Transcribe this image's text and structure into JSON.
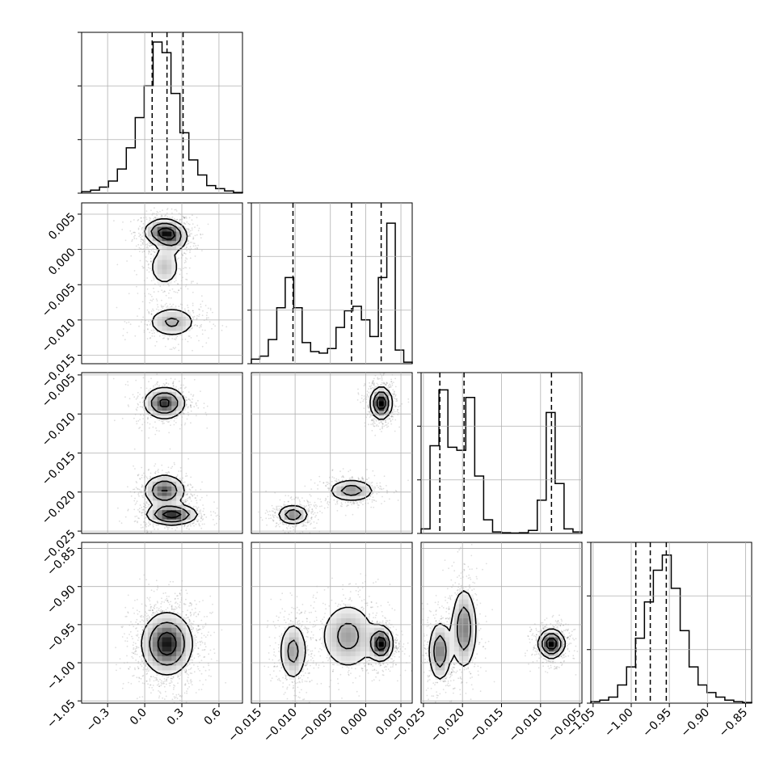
{
  "chart_data": {
    "type": "corner",
    "grid": true,
    "parameters": [
      {
        "ticks": [
          -0.3,
          0.0,
          0.3,
          0.6
        ],
        "tick_labels": [
          "−0.3",
          "0.0",
          "0.3",
          "0.6"
        ],
        "range": [
          -0.51,
          0.79
        ],
        "quantiles": [
          0.06,
          0.18,
          0.31
        ]
      },
      {
        "ticks": [
          -0.015,
          -0.01,
          -0.005,
          0.0,
          0.005
        ],
        "tick_labels": [
          "−0.015",
          "−0.010",
          "−0.005",
          "0.000",
          "0.005"
        ],
        "range": [
          -0.0162,
          0.0066
        ],
        "quantiles": [
          -0.0103,
          -0.002,
          0.0022
        ]
      },
      {
        "ticks": [
          -0.025,
          -0.02,
          -0.015,
          -0.01,
          -0.005
        ],
        "tick_labels": [
          "−0.025",
          "−0.020",
          "−0.015",
          "−0.010",
          "−0.005"
        ],
        "range": [
          -0.0253,
          -0.0047
        ],
        "quantiles": [
          -0.0229,
          -0.0198,
          -0.0086
        ]
      },
      {
        "ticks": [
          -1.05,
          -1.0,
          -0.95,
          -0.9,
          -0.85
        ],
        "tick_labels": [
          "−1.05",
          "−1.00",
          "−0.95",
          "−0.90",
          "−0.85"
        ],
        "range": [
          -1.053,
          -0.842
        ],
        "quantiles": [
          -0.994,
          -0.975,
          -0.954
        ]
      }
    ],
    "histograms": [
      [
        0.01,
        0.02,
        0.04,
        0.08,
        0.16,
        0.3,
        0.5,
        0.71,
        1.0,
        0.93,
        0.66,
        0.4,
        0.22,
        0.12,
        0.05,
        0.03,
        0.015,
        0.005
      ],
      [
        0.03,
        0.05,
        0.16,
        0.37,
        0.57,
        0.37,
        0.14,
        0.08,
        0.07,
        0.1,
        0.24,
        0.35,
        0.38,
        0.29,
        0.18,
        0.57,
        0.93,
        0.09,
        0.01
      ],
      [
        0.03,
        0.58,
        0.95,
        0.57,
        0.55,
        0.9,
        0.38,
        0.09,
        0.01,
        0.005,
        0.003,
        0.005,
        0.02,
        0.22,
        0.8,
        0.33,
        0.03,
        0.01
      ],
      [
        0.01,
        0.02,
        0.04,
        0.12,
        0.24,
        0.43,
        0.67,
        0.88,
        0.98,
        0.76,
        0.48,
        0.24,
        0.12,
        0.07,
        0.04,
        0.02,
        0.01,
        0.005
      ]
    ],
    "blobs": {
      "1-0": [
        {
          "x": 0.15,
          "y": 0.0025,
          "sx": 0.085,
          "sy": 0.001,
          "w": 1.0
        },
        {
          "x": 0.23,
          "y": 0.0015,
          "sx": 0.07,
          "sy": 0.0011,
          "w": 0.55
        },
        {
          "x": 0.16,
          "y": -0.0025,
          "sx": 0.075,
          "sy": 0.0016,
          "w": 0.5
        },
        {
          "x": 0.22,
          "y": -0.0103,
          "sx": 0.11,
          "sy": 0.0012,
          "w": 0.62
        }
      ],
      "2-0": [
        {
          "x": 0.16,
          "y": -0.0086,
          "sx": 0.09,
          "sy": 0.0011,
          "w": 0.55
        },
        {
          "x": 0.16,
          "y": -0.0198,
          "sx": 0.09,
          "sy": 0.0011,
          "w": 0.5
        },
        {
          "x": 0.22,
          "y": -0.0229,
          "sx": 0.11,
          "sy": 0.0007,
          "w": 0.6
        }
      ],
      "3-0": [
        {
          "x": 0.18,
          "y": -0.975,
          "sx": 0.11,
          "sy": 0.022,
          "w": 1.0
        }
      ],
      "2-1": [
        {
          "x": 0.0022,
          "y": -0.0086,
          "sx": 0.0008,
          "sy": 0.0011,
          "w": 0.8
        },
        {
          "x": -0.002,
          "y": -0.0198,
          "sx": 0.0018,
          "sy": 0.0008,
          "w": 0.45
        },
        {
          "x": -0.0103,
          "y": -0.0229,
          "sx": 0.0012,
          "sy": 0.0007,
          "w": 0.5
        }
      ],
      "3-1": [
        {
          "x": -0.0103,
          "y": -0.985,
          "sx": 0.0011,
          "sy": 0.022,
          "w": 0.45
        },
        {
          "x": -0.0025,
          "y": -0.965,
          "sx": 0.0022,
          "sy": 0.025,
          "w": 0.45
        },
        {
          "x": 0.0022,
          "y": -0.975,
          "sx": 0.0009,
          "sy": 0.012,
          "w": 0.8
        }
      ],
      "3-2": [
        {
          "x": -0.0229,
          "y": -0.985,
          "sx": 0.0008,
          "sy": 0.022,
          "w": 0.45
        },
        {
          "x": -0.0198,
          "y": -0.955,
          "sx": 0.0009,
          "sy": 0.03,
          "w": 0.45
        },
        {
          "x": -0.0086,
          "y": -0.975,
          "sx": 0.0009,
          "sy": 0.01,
          "w": 0.7
        }
      ]
    },
    "contour_levels": [
      0.8,
      0.45,
      0.18
    ]
  }
}
